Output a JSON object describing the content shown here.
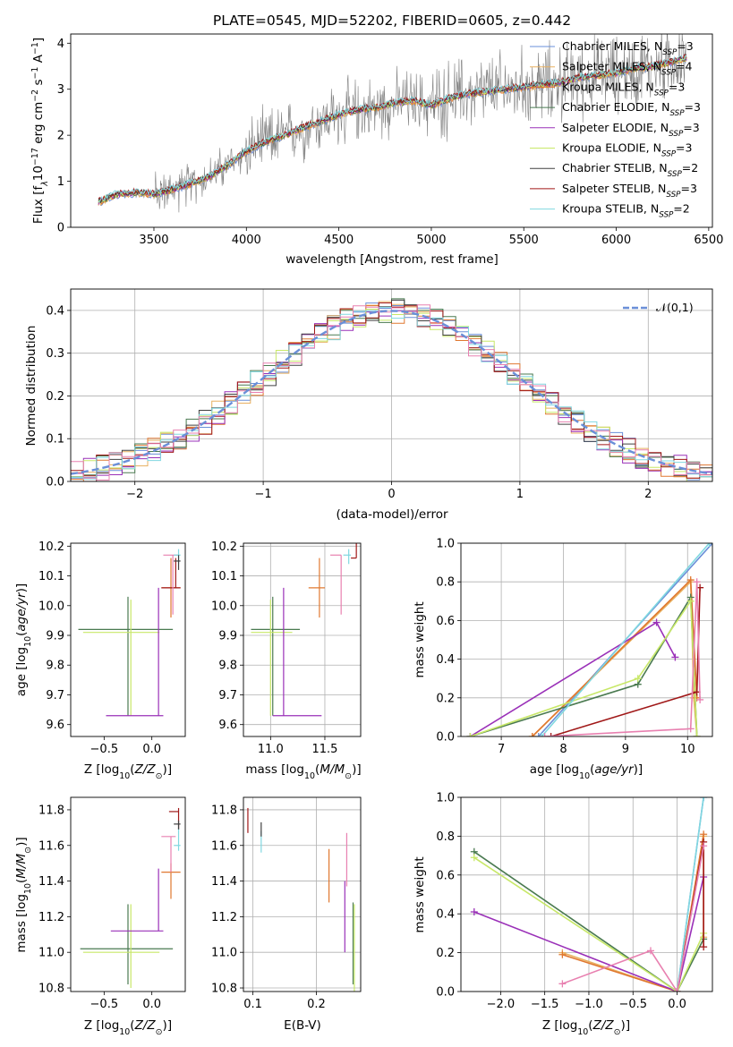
{
  "title": "PLATE=0545, MJD=52202, FIBERID=0605, z=0.442",
  "colors": {
    "chabrier_miles": "#6a8fd8",
    "salpeter_miles": "#e8b060",
    "kroupa_miles": "#e07830",
    "chabrier_elodie": "#4a7a50",
    "salpeter_elodie": "#9a30b8",
    "kroupa_elodie": "#c8e868",
    "chabrier_stelib": "#404040",
    "salpeter_stelib": "#a01818",
    "kroupa_stelib": "#80d8e0",
    "pink": "#e880b0",
    "spectrum_data": "#808080",
    "normal_curve": "#6a8fd8"
  },
  "chart_data": [
    {
      "type": "line",
      "panel": "spectrum",
      "xlabel": "wavelength [Angstrom, rest frame]",
      "ylabel": "Flux [f_λ10^-17 erg cm^-2 s^-1 A^-1]",
      "xlim": [
        3050,
        6520
      ],
      "ylim": [
        0,
        4.2
      ],
      "xticks": [
        3500,
        4000,
        4500,
        5000,
        5500,
        6000,
        6500
      ],
      "yticks": [
        0,
        1,
        2,
        3,
        4
      ],
      "legend_position": "upper right",
      "series": [
        {
          "name": "Chabrier MILES, N_SSP=3",
          "key": "chabrier_miles"
        },
        {
          "name": "Salpeter MILES, N_SSP=4",
          "key": "salpeter_miles"
        },
        {
          "name": "Kroupa MILES, N_SSP=3",
          "key": "kroupa_miles"
        },
        {
          "name": "Chabrier ELODIE, N_SSP=3",
          "key": "chabrier_elodie"
        },
        {
          "name": "Salpeter ELODIE, N_SSP=3",
          "key": "salpeter_elodie"
        },
        {
          "name": "Kroupa ELODIE, N_SSP=3",
          "key": "kroupa_elodie"
        },
        {
          "name": "Chabrier STELIB, N_SSP=2",
          "key": "chabrier_stelib"
        },
        {
          "name": "Salpeter STELIB, N_SSP=3",
          "key": "salpeter_stelib"
        },
        {
          "name": "Kroupa STELIB, N_SSP=2",
          "key": "kroupa_stelib"
        }
      ],
      "model_continuum": {
        "x": [
          3200,
          3300,
          3400,
          3500,
          3600,
          3700,
          3800,
          3900,
          3950,
          4000,
          4100,
          4200,
          4300,
          4400,
          4500,
          4600,
          4700,
          4800,
          4900,
          5000,
          5100,
          5200,
          5300,
          5400,
          5500,
          5600,
          5700,
          5800,
          5900,
          6000,
          6100,
          6200,
          6300,
          6400
        ],
        "y": [
          0.55,
          0.72,
          0.75,
          0.72,
          0.82,
          0.95,
          1.1,
          1.35,
          1.5,
          1.65,
          1.85,
          2.0,
          2.15,
          2.3,
          2.45,
          2.55,
          2.6,
          2.7,
          2.75,
          2.65,
          2.8,
          2.9,
          2.95,
          3.0,
          3.05,
          3.1,
          3.15,
          3.25,
          3.3,
          3.35,
          3.45,
          3.5,
          3.6,
          3.7
        ]
      }
    },
    {
      "type": "step",
      "panel": "residuals",
      "xlabel": "(data-model)/error",
      "ylabel": "Normed distribution",
      "xlim": [
        -2.5,
        2.5
      ],
      "ylim": [
        0,
        0.45
      ],
      "xticks": [
        -2,
        -1,
        0,
        1,
        2
      ],
      "yticks": [
        0.0,
        0.1,
        0.2,
        0.3,
        0.4
      ],
      "legend_position": "upper right",
      "reference_label": "𝒩(0,1)",
      "bin_width": 0.1,
      "grid": true
    },
    {
      "type": "errorbar",
      "panel": "age_vs_Z",
      "xlabel": "Z [log10(Z/Z⊙)]",
      "ylabel": "age [log10(age/yr)]",
      "xlim": [
        -0.85,
        0.35
      ],
      "ylim": [
        9.56,
        10.21
      ],
      "xticks": [
        -0.5,
        0.0
      ],
      "xtick_labels": [
        "−0.5",
        "0.0"
      ],
      "yticks": [
        9.6,
        9.7,
        9.8,
        9.9,
        10.0,
        10.1,
        10.2
      ],
      "points": [
        {
          "key": "chabrier_elodie",
          "x": -0.25,
          "xerr": [
            0.52,
            0.47
          ],
          "y": 9.92,
          "yerr": [
            0.29,
            0.11
          ]
        },
        {
          "key": "kroupa_elodie",
          "x": -0.22,
          "xerr": [
            0.5,
            0.3
          ],
          "y": 9.91,
          "yerr": [
            0.28,
            0.11
          ]
        },
        {
          "key": "salpeter_elodie",
          "x": 0.07,
          "xerr": [
            0.55,
            0.05
          ],
          "y": 9.63,
          "yerr": [
            0.0,
            0.43
          ]
        },
        {
          "key": "kroupa_miles",
          "x": 0.2,
          "xerr": [
            0.1,
            0.1
          ],
          "y": 10.06,
          "yerr": [
            0.1,
            0.1
          ]
        },
        {
          "key": "salpeter_stelib",
          "x": 0.25,
          "xerr": [
            0.15,
            0.05
          ],
          "y": 10.06,
          "yerr": [
            0.0,
            0.1
          ]
        },
        {
          "key": "pink",
          "x": 0.22,
          "xerr": [
            0.1,
            0.05
          ],
          "y": 10.17,
          "yerr": [
            0.2,
            0.0
          ]
        },
        {
          "key": "kroupa_stelib",
          "x": 0.28,
          "xerr": [
            0.05,
            0.02
          ],
          "y": 10.17,
          "yerr": [
            0.03,
            0.02
          ]
        },
        {
          "key": "chabrier_stelib",
          "x": 0.28,
          "xerr": [
            0.05,
            0.02
          ],
          "y": 10.15,
          "yerr": [
            0.03,
            0.02
          ]
        }
      ]
    },
    {
      "type": "errorbar",
      "panel": "age_vs_mass",
      "xlabel": "mass [log10(M/M⊙)]",
      "xlim": [
        10.75,
        11.83
      ],
      "ylim": [
        9.56,
        10.21
      ],
      "xticks": [
        11.0,
        11.5
      ],
      "yticks": [
        9.6,
        9.7,
        9.8,
        9.9,
        10.0,
        10.1,
        10.2
      ],
      "points": [
        {
          "key": "chabrier_elodie",
          "x": 11.02,
          "xerr": [
            0.2,
            0.25
          ],
          "y": 9.92,
          "yerr": [
            0.29,
            0.11
          ]
        },
        {
          "key": "kroupa_elodie",
          "x": 11.0,
          "xerr": [
            0.18,
            0.2
          ],
          "y": 9.91,
          "yerr": [
            0.28,
            0.11
          ]
        },
        {
          "key": "salpeter_elodie",
          "x": 11.12,
          "xerr": [
            0.1,
            0.35
          ],
          "y": 9.63,
          "yerr": [
            0.0,
            0.43
          ]
        },
        {
          "key": "kroupa_miles",
          "x": 11.45,
          "xerr": [
            0.1,
            0.05
          ],
          "y": 10.06,
          "yerr": [
            0.1,
            0.1
          ]
        },
        {
          "key": "pink",
          "x": 11.65,
          "xerr": [
            0.1,
            0.0
          ],
          "y": 10.17,
          "yerr": [
            0.2,
            0.0
          ]
        },
        {
          "key": "salpeter_stelib",
          "x": 11.79,
          "xerr": [
            0.05,
            0.0
          ],
          "y": 10.16,
          "yerr": [
            0.0,
            0.1
          ]
        },
        {
          "key": "kroupa_stelib",
          "x": 11.72,
          "xerr": [
            0.05,
            0.02
          ],
          "y": 10.17,
          "yerr": [
            0.03,
            0.02
          ]
        }
      ]
    },
    {
      "type": "line",
      "panel": "mass_weight_vs_age",
      "xlabel": "age [log10(age/yr)]",
      "ylabel": "mass weight",
      "xlim": [
        6.35,
        10.4
      ],
      "ylim": [
        0,
        1.0
      ],
      "xticks": [
        7,
        8,
        9,
        10
      ],
      "yticks": [
        0.0,
        0.2,
        0.4,
        0.6,
        0.8,
        1.0
      ],
      "grid": true,
      "series": [
        {
          "key": "chabrier_miles",
          "x": [
            7.6,
            10.4
          ],
          "y": [
            0.0,
            1.0
          ]
        },
        {
          "key": "salpeter_miles",
          "x": [
            7.5,
            10.05,
            10.1,
            10.15
          ],
          "y": [
            0.0,
            0.8,
            0.2,
            0.0
          ]
        },
        {
          "key": "kroupa_miles",
          "x": [
            7.5,
            10.05,
            10.15
          ],
          "y": [
            0.0,
            0.81,
            0.2
          ]
        },
        {
          "key": "chabrier_elodie",
          "x": [
            6.5,
            9.2,
            10.05,
            10.15
          ],
          "y": [
            0.0,
            0.27,
            0.72,
            0.0
          ]
        },
        {
          "key": "salpeter_elodie",
          "x": [
            6.5,
            9.5,
            9.8
          ],
          "y": [
            0.0,
            0.59,
            0.41
          ]
        },
        {
          "key": "kroupa_elodie",
          "x": [
            6.5,
            9.2,
            10.05,
            10.15
          ],
          "y": [
            0.0,
            0.3,
            0.7,
            0.0
          ]
        },
        {
          "key": "salpeter_stelib",
          "x": [
            7.8,
            10.15,
            10.2
          ],
          "y": [
            0.0,
            0.23,
            0.77
          ]
        },
        {
          "key": "kroupa_stelib",
          "x": [
            7.65,
            10.35
          ],
          "y": [
            0.0,
            1.0
          ]
        },
        {
          "key": "pink",
          "x": [
            7.7,
            10.05,
            10.15,
            10.2
          ],
          "y": [
            0.0,
            0.04,
            0.8,
            0.19
          ]
        }
      ]
    },
    {
      "type": "errorbar",
      "panel": "mass_vs_Z",
      "xlabel": "Z [log10(Z/Z⊙)]",
      "ylabel": "mass [log10(M/M⊙)]",
      "xlim": [
        -0.85,
        0.35
      ],
      "ylim": [
        10.78,
        11.87
      ],
      "xticks": [
        -0.5,
        0.0
      ],
      "xtick_labels": [
        "−0.5",
        "0.0"
      ],
      "yticks": [
        10.8,
        11.0,
        11.2,
        11.4,
        11.6,
        11.8
      ],
      "points": [
        {
          "key": "chabrier_elodie",
          "x": -0.25,
          "xerr": [
            0.5,
            0.47
          ],
          "y": 11.02,
          "yerr": [
            0.2,
            0.25
          ]
        },
        {
          "key": "kroupa_elodie",
          "x": -0.22,
          "xerr": [
            0.5,
            0.3
          ],
          "y": 11.0,
          "yerr": [
            0.2,
            0.27
          ]
        },
        {
          "key": "salpeter_elodie",
          "x": 0.07,
          "xerr": [
            0.5,
            0.05
          ],
          "y": 11.12,
          "yerr": [
            0.0,
            0.35
          ]
        },
        {
          "key": "kroupa_miles",
          "x": 0.2,
          "xerr": [
            0.1,
            0.1
          ],
          "y": 11.45,
          "yerr": [
            0.15,
            0.05
          ]
        },
        {
          "key": "salpeter_stelib",
          "x": 0.28,
          "xerr": [
            0.1,
            0.0
          ],
          "y": 11.79,
          "yerr": [
            0.1,
            0.02
          ]
        },
        {
          "key": "pink",
          "x": 0.2,
          "xerr": [
            0.1,
            0.05
          ],
          "y": 11.65,
          "yerr": [
            0.2,
            0.0
          ]
        },
        {
          "key": "kroupa_stelib",
          "x": 0.28,
          "xerr": [
            0.05,
            0.02
          ],
          "y": 11.6,
          "yerr": [
            0.03,
            0.1
          ]
        },
        {
          "key": "chabrier_stelib",
          "x": 0.28,
          "xerr": [
            0.05,
            0.02
          ],
          "y": 11.72,
          "yerr": [
            0.03,
            0.02
          ]
        }
      ]
    },
    {
      "type": "errorbar",
      "panel": "mass_vs_ebv",
      "xlabel": "E(B-V)",
      "xlim": [
        0.085,
        0.27
      ],
      "ylim": [
        10.78,
        11.87
      ],
      "xticks": [
        0.1,
        0.2
      ],
      "yticks": [
        10.8,
        11.0,
        11.2,
        11.4,
        11.6,
        11.8
      ],
      "points": [
        {
          "key": "salpeter_stelib",
          "x": 0.092,
          "y": 11.74,
          "yerr": [
            0.07,
            0.07
          ]
        },
        {
          "key": "kroupa_stelib",
          "x": 0.113,
          "y": 11.62,
          "yerr": [
            0.06,
            0.06
          ]
        },
        {
          "key": "chabrier_stelib",
          "x": 0.113,
          "y": 11.69,
          "yerr": [
            0.04,
            0.04
          ]
        },
        {
          "key": "kroupa_miles",
          "x": 0.22,
          "y": 11.43,
          "yerr": [
            0.15,
            0.15
          ]
        },
        {
          "key": "salpeter_elodie",
          "x": 0.245,
          "y": 11.2,
          "yerr": [
            0.2,
            0.2
          ]
        },
        {
          "key": "pink",
          "x": 0.248,
          "y": 11.52,
          "yerr": [
            0.15,
            0.15
          ]
        },
        {
          "key": "chabrier_elodie",
          "x": 0.258,
          "y": 11.05,
          "yerr": [
            0.23,
            0.23
          ]
        },
        {
          "key": "kroupa_elodie",
          "x": 0.26,
          "y": 11.02,
          "yerr": [
            0.25,
            0.25
          ]
        }
      ]
    },
    {
      "type": "line",
      "panel": "mass_weight_vs_Z",
      "xlabel": "Z [log10(Z/Z⊙)]",
      "ylabel": "mass weight",
      "xlim": [
        -2.45,
        0.4
      ],
      "ylim": [
        0,
        1.0
      ],
      "xticks": [
        -2.0,
        -1.5,
        -1.0,
        -0.5,
        0.0
      ],
      "xtick_labels": [
        "−2.0",
        "−1.5",
        "−1.0",
        "−0.5",
        "0.0"
      ],
      "yticks": [
        0.0,
        0.2,
        0.4,
        0.6,
        0.8,
        1.0
      ],
      "grid": true,
      "series": [
        {
          "key": "chabrier_miles",
          "x": [
            0.0,
            0.3
          ],
          "y": [
            0.0,
            1.0
          ]
        },
        {
          "key": "salpeter_miles",
          "x": [
            -1.3,
            0.0,
            0.3,
            0.3
          ],
          "y": [
            0.2,
            0.0,
            0.8,
            0.28
          ]
        },
        {
          "key": "kroupa_miles",
          "x": [
            -1.3,
            0.0,
            0.3
          ],
          "y": [
            0.19,
            0.0,
            0.81
          ]
        },
        {
          "key": "chabrier_elodie",
          "x": [
            -2.3,
            0.0,
            0.3
          ],
          "y": [
            0.72,
            0.0,
            0.27
          ]
        },
        {
          "key": "salpeter_elodie",
          "x": [
            -2.3,
            0.0,
            0.3
          ],
          "y": [
            0.41,
            0.0,
            0.59
          ]
        },
        {
          "key": "kroupa_elodie",
          "x": [
            -2.3,
            0.0,
            0.3
          ],
          "y": [
            0.69,
            0.0,
            0.3
          ]
        },
        {
          "key": "salpeter_stelib",
          "x": [
            0.0,
            0.3,
            0.3
          ],
          "y": [
            0.0,
            0.77,
            0.23
          ]
        },
        {
          "key": "kroupa_stelib",
          "x": [
            0.0,
            0.3
          ],
          "y": [
            0.0,
            1.0
          ]
        },
        {
          "key": "pink",
          "x": [
            -1.3,
            -0.3,
            0.0,
            0.3
          ],
          "y": [
            0.04,
            0.21,
            0.0,
            0.75
          ]
        }
      ]
    }
  ]
}
